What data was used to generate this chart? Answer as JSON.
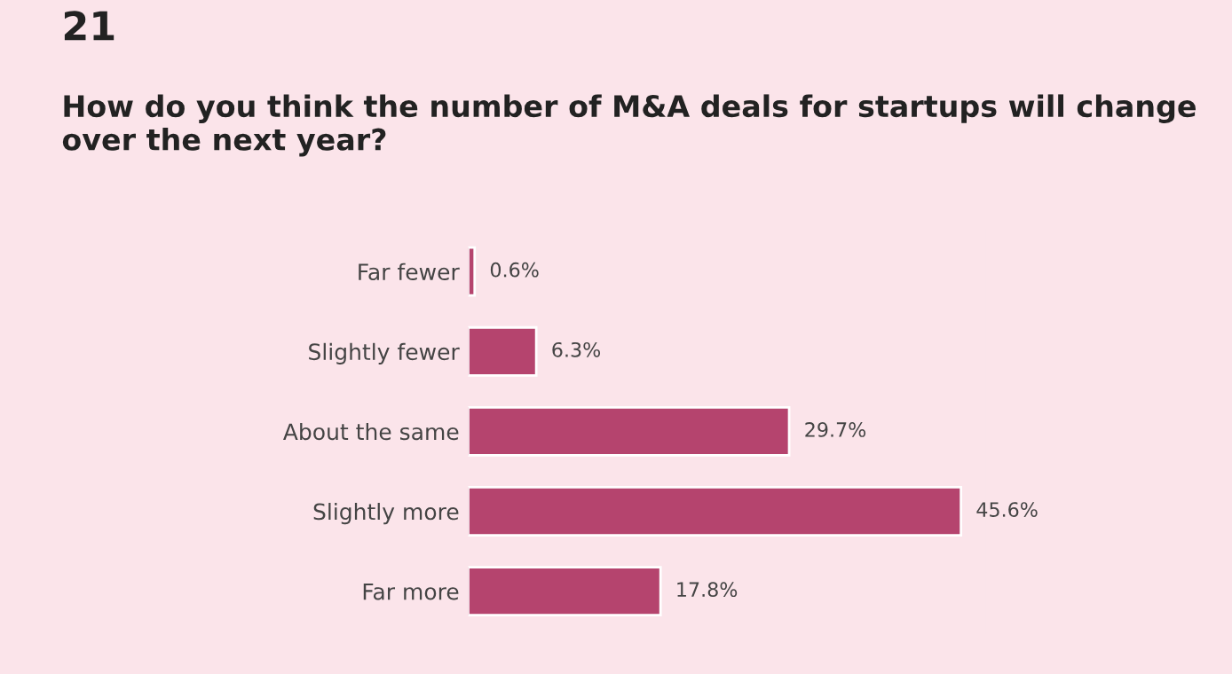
{
  "chart_data": {
    "type": "bar",
    "orientation": "horizontal",
    "title": "How do you think the number of M&A deals for startups will change over the next year?",
    "annotations": [
      "21"
    ],
    "categories": [
      "Far fewer",
      "Slightly fewer",
      "About the same",
      "Slightly more",
      "Far more"
    ],
    "values": [
      0.6,
      6.3,
      29.7,
      45.6,
      17.8
    ],
    "value_labels": [
      "0.6%",
      "6.3%",
      "29.7%",
      "45.6%",
      "17.8%"
    ],
    "color": "#b5446e"
  }
}
